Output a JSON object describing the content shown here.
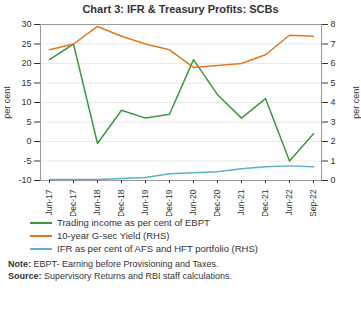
{
  "chart_data": {
    "type": "line",
    "title": "Chart 3: IFR & Treasury Profits: SCBs",
    "ylabel": "per cent",
    "y2label": "per cent",
    "categories": [
      "Jun-17",
      "Dec-17",
      "Jun-18",
      "Dec-18",
      "Jun-19",
      "Dec-19",
      "Jun-20",
      "Dec-20",
      "Jun-21",
      "Dec-21",
      "Jun-22",
      "Sep-22"
    ],
    "series": [
      {
        "name": "Trading income as per cent of EBPT",
        "color": "#3a9a3a",
        "values": [
          21,
          25,
          -0.5,
          8,
          6,
          7,
          21,
          12,
          6,
          11,
          -5,
          2
        ]
      },
      {
        "name": "10-year G-sec Yield (RHS)",
        "color": "#e07820",
        "axis": "y2",
        "values": [
          6.7,
          7.0,
          7.9,
          7.4,
          7.0,
          6.7,
          5.8,
          5.9,
          6.0,
          6.45,
          7.45,
          7.4
        ]
      },
      {
        "name": "IFR as per cent of AFS and HFT portfolio (RHS)",
        "color": "#5ab0d0",
        "axis": "y2",
        "values": [
          0.05,
          0.05,
          0.05,
          0.1,
          0.15,
          0.35,
          0.4,
          0.45,
          0.6,
          0.7,
          0.75,
          0.7
        ]
      }
    ],
    "ylim": [
      -10,
      30
    ],
    "yticks": [
      -10,
      -5,
      0,
      5,
      10,
      15,
      20,
      25,
      30
    ],
    "y2lim": [
      0,
      8
    ],
    "y2ticks": [
      0,
      1,
      2,
      3,
      4,
      5,
      6,
      7,
      8
    ],
    "grid": true,
    "legend": "bottom",
    "annotations": [
      "Note: EBPT- Earning before Provisioning and Taxes.",
      "Source: Supervisory Returns and RBI staff calculations."
    ]
  }
}
